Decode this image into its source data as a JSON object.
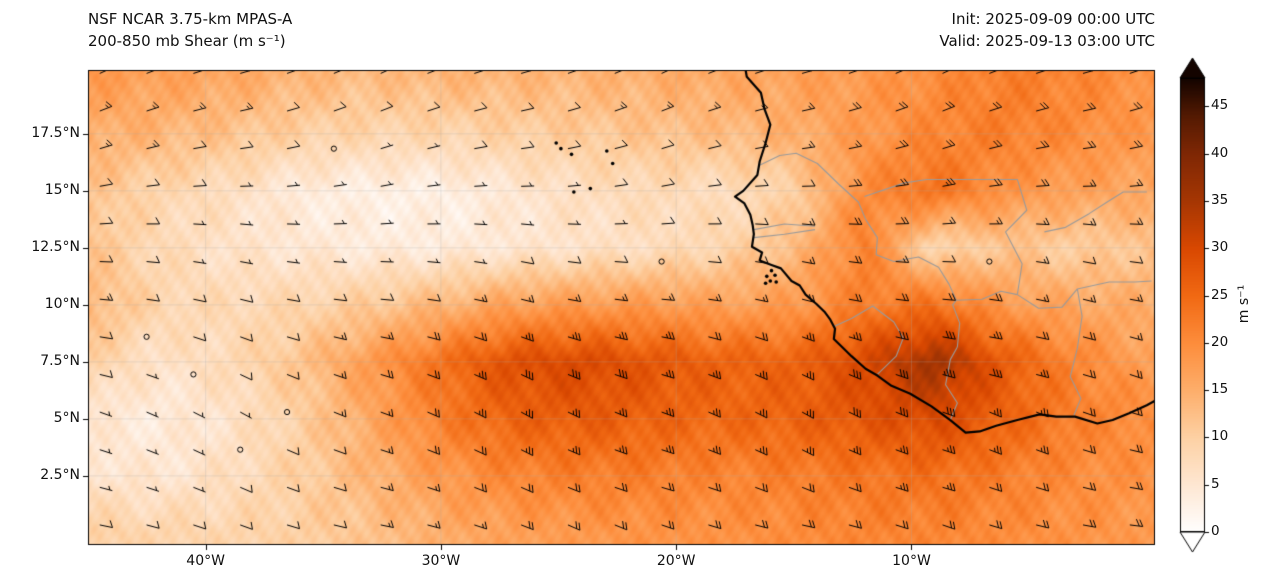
{
  "header": {
    "model_title": "NSF NCAR 3.75-km MPAS-A",
    "field_title": "200-850 mb Shear (m s⁻¹)",
    "init": "Init: 2025-09-09 00:00 UTC",
    "valid": "Valid: 2025-09-13 03:00 UTC"
  },
  "chart_data": {
    "type": "heatmap",
    "title": "NSF NCAR 3.75-km MPAS-A 200-850 mb Shear (m s⁻¹)",
    "xlabel": "",
    "ylabel": "",
    "extent": {
      "lon": [
        -45.0,
        0.35
      ],
      "lat": [
        -0.53,
        20.3
      ]
    },
    "x_ticks": [
      {
        "value": -40,
        "label": "40°W"
      },
      {
        "value": -30,
        "label": "30°W"
      },
      {
        "value": -20,
        "label": "20°W"
      },
      {
        "value": -10,
        "label": "10°W"
      }
    ],
    "y_ticks": [
      {
        "value": 17.5,
        "label": "17.5°N"
      },
      {
        "value": 15,
        "label": "15°N"
      },
      {
        "value": 12.5,
        "label": "12.5°N"
      },
      {
        "value": 10,
        "label": "10°N"
      },
      {
        "value": 7.5,
        "label": "7.5°N"
      },
      {
        "value": 5,
        "label": "5°N"
      },
      {
        "value": 2.5,
        "label": "2.5°N"
      }
    ],
    "colorbar": {
      "label": "m s⁻¹",
      "vmin": 0,
      "vmax": 48,
      "extend": "both",
      "ticks": [
        {
          "value": 0,
          "label": "0"
        },
        {
          "value": 5,
          "label": "5"
        },
        {
          "value": 10,
          "label": "10"
        },
        {
          "value": 15,
          "label": "15"
        },
        {
          "value": 20,
          "label": "20"
        },
        {
          "value": 25,
          "label": "25"
        },
        {
          "value": 30,
          "label": "30"
        },
        {
          "value": 35,
          "label": "35"
        },
        {
          "value": 40,
          "label": "40"
        },
        {
          "value": 45,
          "label": "45"
        }
      ],
      "stops": [
        [
          0,
          "#ffffff"
        ],
        [
          5,
          "#fee7d3"
        ],
        [
          10,
          "#fdd1a4"
        ],
        [
          15,
          "#fdae6b"
        ],
        [
          20,
          "#fd8d3c"
        ],
        [
          25,
          "#f16913"
        ],
        [
          30,
          "#d94801"
        ],
        [
          35,
          "#a63603"
        ],
        [
          40,
          "#7f2704"
        ],
        [
          44,
          "#541a02"
        ],
        [
          48,
          "#140400"
        ]
      ]
    },
    "shear_field": {
      "units": "m s⁻¹",
      "lons": [
        -45,
        -42,
        -39,
        -36,
        -33,
        -30,
        -27,
        -24,
        -21,
        -18,
        -15,
        -12,
        -9,
        -6,
        -3,
        0
      ],
      "lats": [
        0,
        2.5,
        5,
        7.5,
        10,
        12.5,
        15,
        17.5,
        20
      ],
      "values": [
        [
          10,
          9,
          9,
          10,
          12,
          15,
          17,
          18,
          19,
          19,
          20,
          21,
          21,
          20,
          19,
          18
        ],
        [
          6,
          5,
          7,
          10,
          14,
          18,
          21,
          22,
          22,
          21,
          22,
          23,
          24,
          22,
          20,
          19
        ],
        [
          5,
          4,
          6,
          10,
          16,
          22,
          26,
          27,
          26,
          25,
          26,
          28,
          30,
          26,
          22,
          20
        ],
        [
          10,
          6,
          8,
          12,
          18,
          24,
          29,
          30,
          28,
          26,
          26,
          30,
          36,
          27,
          21,
          17
        ],
        [
          14,
          9,
          8,
          9,
          11,
          14,
          17,
          18,
          18,
          17,
          18,
          22,
          24,
          18,
          16,
          15
        ],
        [
          12,
          8,
          6,
          5,
          4,
          4,
          5,
          6,
          7,
          9,
          13,
          22,
          8,
          12,
          10,
          12
        ],
        [
          12,
          9,
          7,
          4,
          3,
          3,
          5,
          7,
          8,
          7,
          10,
          20,
          24,
          19,
          17,
          16
        ],
        [
          15,
          14,
          12,
          10,
          9,
          9,
          10,
          11,
          12,
          13,
          15,
          18,
          21,
          22,
          20,
          18
        ],
        [
          18,
          17,
          16,
          14,
          13,
          14,
          14,
          14,
          15,
          16,
          17,
          18,
          20,
          22,
          21,
          19
        ]
      ]
    },
    "wind_barbs": {
      "units": "m s⁻¹",
      "full_barb": 10,
      "half_barb": 5,
      "direction_from_deg": [
        [
          100,
          105,
          110,
          105,
          100,
          105,
          110,
          115,
          110,
          105,
          100,
          105,
          110,
          105,
          100,
          95
        ],
        [
          105,
          110,
          115,
          110,
          105,
          110,
          115,
          110,
          105,
          110,
          115,
          110,
          105,
          110,
          105,
          100
        ],
        [
          110,
          115,
          120,
          115,
          110,
          115,
          120,
          115,
          110,
          115,
          120,
          115,
          110,
          115,
          110,
          105
        ],
        [
          100,
          110,
          115,
          110,
          105,
          110,
          115,
          110,
          105,
          110,
          115,
          110,
          105,
          100,
          105,
          110
        ],
        [
          95,
          100,
          105,
          100,
          95,
          100,
          105,
          100,
          95,
          100,
          105,
          100,
          95,
          100,
          105,
          100
        ],
        [
          90,
          95,
          100,
          95,
          90,
          95,
          100,
          95,
          90,
          95,
          100,
          95,
          90,
          95,
          100,
          95
        ],
        [
          80,
          85,
          90,
          85,
          80,
          85,
          90,
          85,
          80,
          85,
          90,
          85,
          80,
          85,
          90,
          85
        ],
        [
          70,
          75,
          80,
          75,
          70,
          75,
          80,
          75,
          70,
          75,
          80,
          75,
          70,
          75,
          80,
          75
        ],
        [
          65,
          70,
          75,
          70,
          65,
          70,
          75,
          70,
          65,
          70,
          75,
          70,
          65,
          70,
          75,
          70
        ]
      ]
    },
    "calm_points": [
      [
        -34.8,
        16.4
      ],
      [
        -17.4,
        16.2
      ],
      [
        -19.9,
        12.4
      ],
      [
        -7.5,
        11.6
      ],
      [
        -42.3,
        8.6
      ],
      [
        -41.2,
        7.3
      ],
      [
        -38.8,
        3.6
      ],
      [
        -36.8,
        5.5
      ]
    ],
    "coastline": [
      [
        -17.05,
        20.3
      ],
      [
        -17.0,
        20.0
      ],
      [
        -16.4,
        19.3
      ],
      [
        -16.25,
        18.6
      ],
      [
        -16.0,
        17.9
      ],
      [
        -16.2,
        17.1
      ],
      [
        -16.45,
        16.3
      ],
      [
        -16.55,
        15.7
      ],
      [
        -17.15,
        15.0
      ],
      [
        -17.5,
        14.75
      ],
      [
        -17.1,
        14.45
      ],
      [
        -16.85,
        13.95
      ],
      [
        -16.75,
        13.5
      ],
      [
        -16.7,
        13.1
      ],
      [
        -16.78,
        12.55
      ],
      [
        -16.35,
        12.3
      ],
      [
        -16.45,
        11.95
      ],
      [
        -15.95,
        11.75
      ],
      [
        -15.55,
        11.6
      ],
      [
        -15.1,
        11.05
      ],
      [
        -14.75,
        10.85
      ],
      [
        -14.5,
        10.45
      ],
      [
        -14.05,
        10.05
      ],
      [
        -13.7,
        9.7
      ],
      [
        -13.45,
        9.35
      ],
      [
        -13.25,
        8.95
      ],
      [
        -13.3,
        8.5
      ],
      [
        -12.95,
        8.15
      ],
      [
        -12.55,
        7.75
      ],
      [
        -11.95,
        7.2
      ],
      [
        -11.45,
        6.9
      ],
      [
        -10.85,
        6.45
      ],
      [
        -10.05,
        6.1
      ],
      [
        -9.15,
        5.55
      ],
      [
        -8.35,
        4.95
      ],
      [
        -7.7,
        4.4
      ],
      [
        -7.1,
        4.45
      ],
      [
        -6.4,
        4.7
      ],
      [
        -5.5,
        4.95
      ],
      [
        -4.55,
        5.2
      ],
      [
        -3.85,
        5.1
      ],
      [
        -3.05,
        5.1
      ],
      [
        -2.1,
        4.8
      ],
      [
        -1.45,
        4.95
      ],
      [
        -0.75,
        5.25
      ],
      [
        0.0,
        5.6
      ],
      [
        0.35,
        5.8
      ]
    ],
    "borders": [
      [
        [
          -16.5,
          16.1
        ],
        [
          -15.6,
          16.55
        ],
        [
          -14.9,
          16.65
        ],
        [
          -14.0,
          16.2
        ],
        [
          -13.1,
          15.3
        ],
        [
          -12.25,
          14.5
        ],
        [
          -11.95,
          13.75
        ]
      ],
      [
        [
          -11.95,
          13.75
        ],
        [
          -11.45,
          12.95
        ],
        [
          -11.5,
          12.2
        ],
        [
          -10.75,
          11.9
        ],
        [
          -9.7,
          12.1
        ],
        [
          -8.85,
          11.65
        ],
        [
          -8.4,
          10.9
        ],
        [
          -8.1,
          10.2
        ]
      ],
      [
        [
          -16.7,
          13.3
        ],
        [
          -15.4,
          13.55
        ],
        [
          -14.1,
          13.45
        ]
      ],
      [
        [
          -16.7,
          12.95
        ],
        [
          -15.4,
          13.1
        ],
        [
          -14.1,
          13.3
        ]
      ],
      [
        [
          -13.3,
          9.05
        ],
        [
          -12.55,
          9.4
        ],
        [
          -11.65,
          9.95
        ],
        [
          -10.75,
          9.25
        ],
        [
          -10.35,
          8.55
        ]
      ],
      [
        [
          -11.45,
          6.95
        ],
        [
          -10.65,
          7.75
        ],
        [
          -10.35,
          8.55
        ]
      ],
      [
        [
          -8.35,
          4.95
        ],
        [
          -8.05,
          5.7
        ],
        [
          -8.55,
          6.5
        ],
        [
          -8.35,
          7.6
        ],
        [
          -8.05,
          8.15
        ]
      ],
      [
        [
          -8.05,
          8.15
        ],
        [
          -7.95,
          9.2
        ],
        [
          -8.25,
          10.0
        ],
        [
          -8.1,
          10.2
        ]
      ],
      [
        [
          -3.1,
          5.15
        ],
        [
          -2.8,
          5.9
        ],
        [
          -3.25,
          6.85
        ],
        [
          -2.95,
          8.1
        ],
        [
          -2.75,
          9.5
        ],
        [
          -2.95,
          10.7
        ]
      ],
      [
        [
          -5.5,
          10.45
        ],
        [
          -4.6,
          9.85
        ],
        [
          -3.6,
          9.9
        ],
        [
          -2.95,
          10.7
        ]
      ],
      [
        [
          -8.1,
          10.2
        ],
        [
          -7.0,
          10.25
        ],
        [
          -6.2,
          10.6
        ],
        [
          -5.5,
          10.45
        ]
      ],
      [
        [
          -4.35,
          13.2
        ],
        [
          -3.45,
          13.4
        ],
        [
          -2.45,
          14.0
        ],
        [
          -1.7,
          14.5
        ],
        [
          -1.0,
          14.95
        ],
        [
          0.0,
          14.95
        ]
      ],
      [
        [
          -2.95,
          10.7
        ],
        [
          -1.6,
          11.0
        ],
        [
          -0.5,
          11.0
        ],
        [
          0.2,
          11.05
        ]
      ],
      [
        [
          -12.0,
          14.75
        ],
        [
          -10.3,
          15.35
        ],
        [
          -9.35,
          15.5
        ],
        [
          -5.5,
          15.5
        ],
        [
          -5.1,
          14.15
        ],
        [
          -6.0,
          13.2
        ],
        [
          -5.3,
          11.8
        ],
        [
          -5.5,
          10.45
        ]
      ]
    ],
    "islands": [
      [
        -25.1,
        17.1
      ],
      [
        -24.9,
        16.85
      ],
      [
        -24.45,
        16.6
      ],
      [
        -22.95,
        16.75
      ],
      [
        -22.7,
        16.2
      ],
      [
        -23.65,
        15.1
      ],
      [
        -24.35,
        14.95
      ],
      [
        -15.95,
        11.5
      ],
      [
        -16.15,
        11.25
      ],
      [
        -15.8,
        11.3
      ],
      [
        -16.0,
        11.05
      ],
      [
        -15.75,
        11.0
      ],
      [
        -16.2,
        10.95
      ]
    ]
  }
}
